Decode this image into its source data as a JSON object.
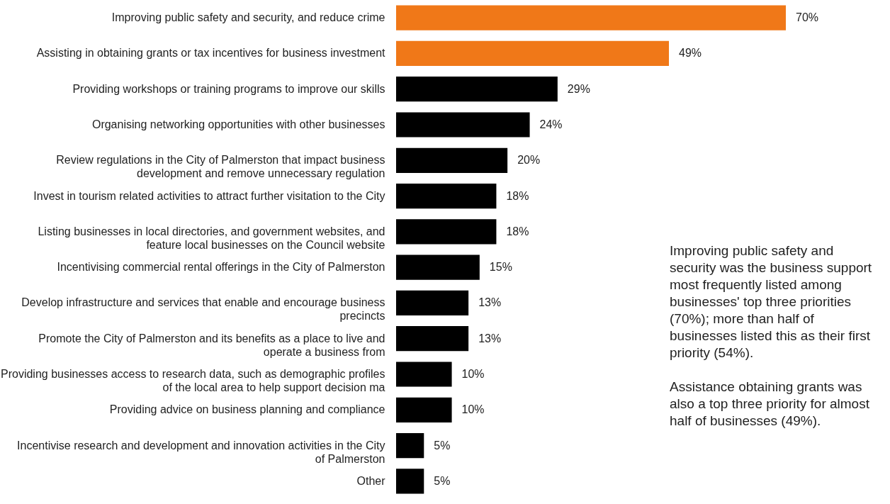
{
  "chart_data": {
    "type": "bar",
    "orientation": "horizontal",
    "categories": [
      "Improving public safety and security, and reduce crime",
      "Assisting in obtaining grants or tax incentives for business investment",
      "Providing workshops or training programs to improve our skills",
      "Organising networking opportunities with other businesses",
      "Review regulations in the City of Palmerston that impact business\ndevelopment and remove unnecessary regulation",
      "Invest in tourism related activities to attract further visitation to the City",
      "Listing businesses in local directories, and government websites, and\nfeature local businesses on the Council website",
      "Incentivising commercial rental offerings in the City of Palmerston",
      "Develop infrastructure and services that enable and encourage business\nprecincts",
      "Promote the City of Palmerston and its benefits as a place to live and\noperate a business from",
      "Providing businesses access to research data, such as demographic profiles\nof the local area to help support decision ma",
      "Providing advice on business planning and compliance",
      "Incentivise research and development and innovation activities in the City\nof Palmerston",
      "Other"
    ],
    "values": [
      70,
      49,
      29,
      24,
      20,
      18,
      18,
      15,
      13,
      13,
      10,
      10,
      5,
      5
    ],
    "value_labels": [
      "70%",
      "49%",
      "29%",
      "24%",
      "20%",
      "18%",
      "18%",
      "15%",
      "13%",
      "13%",
      "10%",
      "10%",
      "5%",
      "5%"
    ],
    "colors": [
      "#f07818",
      "#f07818",
      "#000000",
      "#000000",
      "#000000",
      "#000000",
      "#000000",
      "#000000",
      "#000000",
      "#000000",
      "#000000",
      "#000000",
      "#000000",
      "#000000"
    ],
    "annotations": [
      "Improving public safety and security was the business support most frequently listed among businesses' top three priorities (70%); more than half of businesses listed this as their first priority (54%).",
      "Assistance obtaining grants was also a top three priority for almost half of businesses (49%)."
    ]
  }
}
